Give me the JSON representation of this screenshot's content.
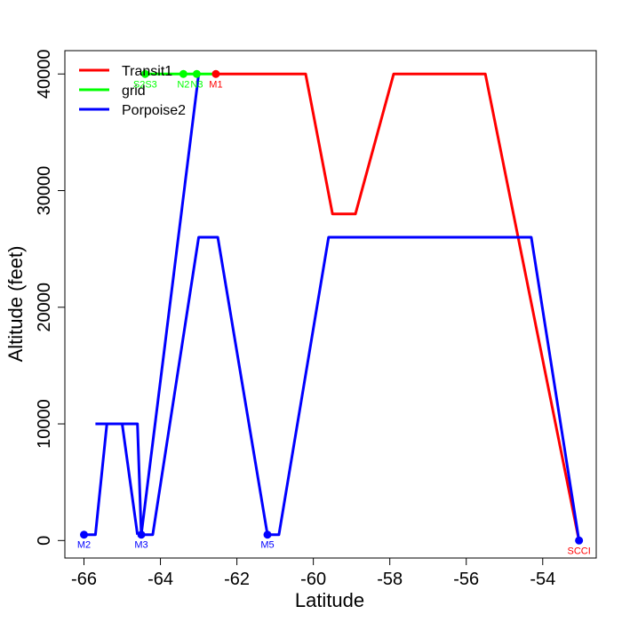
{
  "chart_data": {
    "type": "line",
    "xlabel": "Latitude",
    "ylabel": "Altitude (feet)",
    "xlim": [
      -66.5,
      -52.6
    ],
    "ylim": [
      -1500,
      42000
    ],
    "xticks": [
      -66,
      -64,
      -62,
      -60,
      -58,
      -56,
      -54
    ],
    "yticks": [
      0,
      10000,
      20000,
      30000,
      40000
    ],
    "xtick_labels": [
      "-66",
      "-64",
      "-62",
      "-60",
      "-58",
      "-56",
      "-54"
    ],
    "ytick_labels": [
      "0",
      "10000",
      "20000",
      "30000",
      "40000"
    ],
    "legend_position": "top-left",
    "series": [
      {
        "name": "Transit1",
        "color": "#ff0000",
        "x": [
          -62.5,
          -60.2,
          -59.5,
          -58.9,
          -57.9,
          -56.2,
          -55.5,
          -53.05
        ],
        "y": [
          40000,
          40000,
          28000,
          28000,
          40000,
          40000,
          40000,
          0
        ]
      },
      {
        "name": "grid",
        "color": "#00ff00",
        "x": [
          -64.4,
          -63.4,
          -63.05,
          -62.5
        ],
        "y": [
          40000,
          40000,
          40000,
          40000
        ]
      },
      {
        "name": "Porpoise2",
        "color": "#0000ff",
        "x": [
          -66.0,
          -65.7,
          -65.4,
          -65.0,
          -64.6,
          -64.5,
          -64.2,
          -63.0,
          -62.95,
          -62.5,
          -61.2,
          -60.9,
          -59.6,
          -58.0,
          -54.3,
          -53.05
        ],
        "y": [
          500,
          500,
          10000,
          10000,
          10000,
          500,
          500,
          26000,
          26000,
          26000,
          500,
          500,
          26000,
          26000,
          26000,
          0
        ]
      },
      {
        "name": "",
        "color": "#0000ff",
        "x": [
          -64.5,
          -63.0
        ],
        "y": [
          500,
          40000
        ]
      },
      {
        "name": "",
        "color": "#0000ff",
        "x": [
          -65.7,
          -65.0,
          -64.6
        ],
        "y": [
          10000,
          10000,
          500
        ]
      }
    ],
    "points": [
      {
        "label": "M2",
        "x": -66.0,
        "y": 500,
        "color": "#0000ff",
        "label_color": "#0000ff"
      },
      {
        "label": "M3",
        "x": -64.5,
        "y": 500,
        "color": "#0000ff",
        "label_color": "#0000ff"
      },
      {
        "label": "M5",
        "x": -61.2,
        "y": 500,
        "color": "#0000ff",
        "label_color": "#0000ff"
      },
      {
        "label": "SCCI",
        "x": -53.05,
        "y": 0,
        "color": "#0000ff",
        "label_color": "#ff0000"
      },
      {
        "label": "M1",
        "x": -62.55,
        "y": 40000,
        "color": "#ff0000",
        "label_color": "#ff0000"
      },
      {
        "label": "S2S3",
        "x": -64.4,
        "y": 40000,
        "color": "#00ff00",
        "label_color": "#00ff00"
      },
      {
        "label": "N2",
        "x": -63.4,
        "y": 40000,
        "color": "#00ff00",
        "label_color": "#00ff00"
      },
      {
        "label": "N3",
        "x": -63.05,
        "y": 40000,
        "color": "#00ff00",
        "label_color": "#00ff00"
      }
    ],
    "legend": [
      {
        "name": "Transit1",
        "color": "#ff0000"
      },
      {
        "name": "grid",
        "color": "#00ff00"
      },
      {
        "name": "Porpoise2",
        "color": "#0000ff"
      }
    ]
  }
}
